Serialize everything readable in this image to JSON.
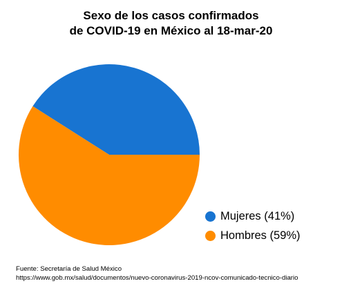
{
  "chart_data": {
    "type": "pie",
    "title_lines": [
      "Sexo de los casos confirmados",
      "de COVID-19 en México al 18-mar-20"
    ],
    "categories": [
      "Mujeres",
      "Hombres"
    ],
    "values": [
      41,
      59
    ],
    "legend_labels": [
      "Mujeres (41%)",
      "Hombres (59%)"
    ],
    "colors": [
      "#1874D1",
      "#FF8C00"
    ],
    "legend_position": "right"
  },
  "source": {
    "line1": "Fuente: Secretaría de Salud México",
    "line2": "https://www.gob.mx/salud/documentos/nuevo-coronavirus-2019-ncov-comunicado-tecnico-diario"
  }
}
